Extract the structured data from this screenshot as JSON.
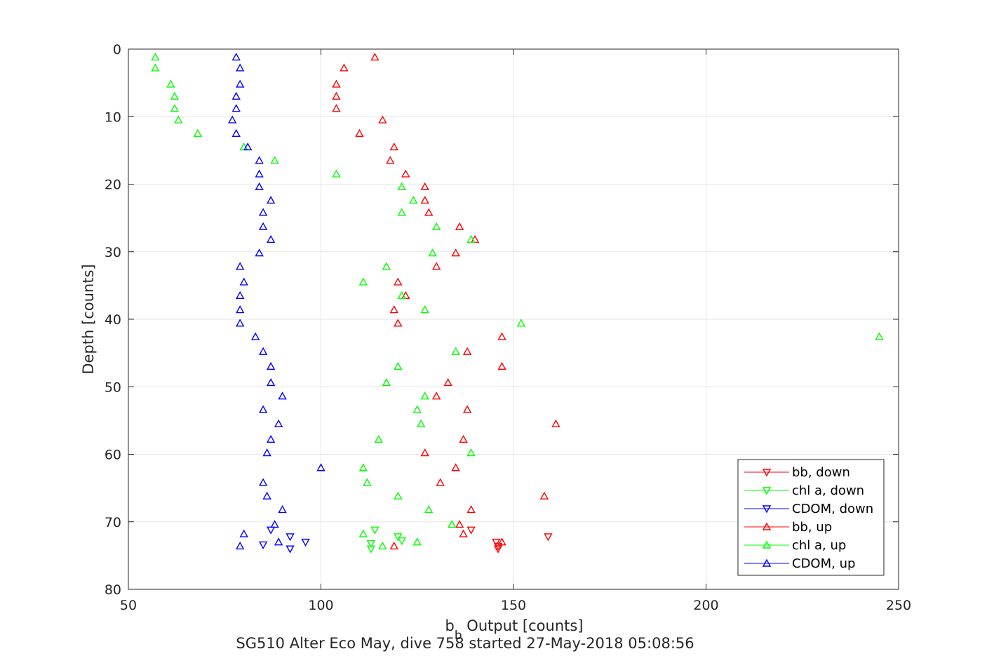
{
  "chart_data": {
    "type": "scatter",
    "title": "SG510 Alter Eco May, dive 758 started 27-May-2018 05:08:56",
    "xlabel_main": "b",
    "xlabel_sub": "b",
    "xlabel_rest": " Output [counts]",
    "ylabel": "Depth [counts]",
    "xlim": [
      50,
      250
    ],
    "ylim": [
      0,
      80
    ],
    "y_reversed": true,
    "xticks": [
      50,
      100,
      150,
      200,
      250
    ],
    "yticks": [
      0,
      10,
      20,
      30,
      40,
      50,
      60,
      70,
      80
    ],
    "grid": true,
    "legend_position": "bottom-right",
    "series": [
      {
        "name": "bb, down",
        "color": "#ff0000",
        "marker": "triangle-down",
        "points": [
          [
            139,
            71.2
          ],
          [
            159,
            72.2
          ],
          [
            145.5,
            73.0
          ],
          [
            146,
            73.6
          ],
          [
            146,
            74.0
          ]
        ]
      },
      {
        "name": "chl a, down",
        "color": "#00ff00",
        "marker": "triangle-down",
        "points": [
          [
            114,
            71.2
          ],
          [
            120,
            72.2
          ],
          [
            121,
            72.8
          ],
          [
            113,
            73.2
          ],
          [
            113,
            74.0
          ]
        ]
      },
      {
        "name": "CDOM, down",
        "color": "#0000ff",
        "marker": "triangle-down",
        "points": [
          [
            87,
            71.2
          ],
          [
            92,
            72.2
          ],
          [
            96,
            73.0
          ],
          [
            85,
            73.4
          ],
          [
            92,
            74.0
          ]
        ]
      },
      {
        "name": "bb, up",
        "color": "#ff0000",
        "marker": "triangle-up",
        "points": [
          [
            114,
            1.2
          ],
          [
            106,
            2.8
          ],
          [
            104,
            5.2
          ],
          [
            104,
            7.0
          ],
          [
            104,
            8.8
          ],
          [
            116,
            10.5
          ],
          [
            110,
            12.5
          ],
          [
            119,
            14.5
          ],
          [
            118,
            16.5
          ],
          [
            122,
            18.5
          ],
          [
            127,
            20.4
          ],
          [
            127,
            22.4
          ],
          [
            128,
            24.2
          ],
          [
            136,
            26.3
          ],
          [
            140,
            28.2
          ],
          [
            135,
            30.2
          ],
          [
            130,
            32.2
          ],
          [
            120,
            34.5
          ],
          [
            122,
            36.5
          ],
          [
            119,
            38.6
          ],
          [
            120,
            40.6
          ],
          [
            147,
            42.6
          ],
          [
            138,
            44.8
          ],
          [
            147,
            47.0
          ],
          [
            133,
            49.4
          ],
          [
            130,
            51.4
          ],
          [
            138,
            53.4
          ],
          [
            161,
            55.5
          ],
          [
            137,
            57.8
          ],
          [
            127,
            59.8
          ],
          [
            135,
            62.0
          ],
          [
            131,
            64.2
          ],
          [
            158,
            66.2
          ],
          [
            139,
            68.2
          ],
          [
            136,
            70.4
          ],
          [
            137,
            71.8
          ],
          [
            147,
            73.0
          ],
          [
            119,
            73.6
          ]
        ]
      },
      {
        "name": "chl a, up",
        "color": "#00ff00",
        "marker": "triangle-up",
        "points": [
          [
            57,
            1.2
          ],
          [
            57,
            2.8
          ],
          [
            61,
            5.2
          ],
          [
            62,
            7.0
          ],
          [
            62,
            8.8
          ],
          [
            63,
            10.5
          ],
          [
            68,
            12.5
          ],
          [
            80,
            14.5
          ],
          [
            88,
            16.5
          ],
          [
            104,
            18.5
          ],
          [
            121,
            20.4
          ],
          [
            124,
            22.4
          ],
          [
            121,
            24.2
          ],
          [
            130,
            26.3
          ],
          [
            139,
            28.2
          ],
          [
            129,
            30.2
          ],
          [
            117,
            32.2
          ],
          [
            111,
            34.5
          ],
          [
            121,
            36.5
          ],
          [
            127,
            38.6
          ],
          [
            152,
            40.6
          ],
          [
            245,
            42.6
          ],
          [
            135,
            44.8
          ],
          [
            120,
            47.0
          ],
          [
            117,
            49.4
          ],
          [
            127,
            51.4
          ],
          [
            125,
            53.4
          ],
          [
            126,
            55.5
          ],
          [
            115,
            57.8
          ],
          [
            139,
            59.8
          ],
          [
            111,
            62.0
          ],
          [
            112,
            64.2
          ],
          [
            120,
            66.2
          ],
          [
            128,
            68.2
          ],
          [
            134,
            70.4
          ],
          [
            111,
            71.8
          ],
          [
            125,
            73.0
          ],
          [
            116,
            73.6
          ]
        ]
      },
      {
        "name": "CDOM, up",
        "color": "#0000ff",
        "marker": "triangle-up",
        "points": [
          [
            78,
            1.2
          ],
          [
            79,
            2.8
          ],
          [
            79,
            5.2
          ],
          [
            78,
            7.0
          ],
          [
            78,
            8.8
          ],
          [
            77,
            10.5
          ],
          [
            78,
            12.5
          ],
          [
            81,
            14.5
          ],
          [
            84,
            16.5
          ],
          [
            84,
            18.5
          ],
          [
            84,
            20.4
          ],
          [
            87,
            22.4
          ],
          [
            85,
            24.2
          ],
          [
            85,
            26.3
          ],
          [
            87,
            28.2
          ],
          [
            84,
            30.2
          ],
          [
            79,
            32.2
          ],
          [
            80,
            34.5
          ],
          [
            79,
            36.5
          ],
          [
            79,
            38.6
          ],
          [
            79,
            40.6
          ],
          [
            83,
            42.6
          ],
          [
            85,
            44.8
          ],
          [
            87,
            47.0
          ],
          [
            87,
            49.4
          ],
          [
            90,
            51.4
          ],
          [
            85,
            53.4
          ],
          [
            89,
            55.5
          ],
          [
            87,
            57.8
          ],
          [
            86,
            59.8
          ],
          [
            100,
            62.0
          ],
          [
            85,
            64.2
          ],
          [
            86,
            66.2
          ],
          [
            90,
            68.2
          ],
          [
            88,
            70.4
          ],
          [
            80,
            71.8
          ],
          [
            89,
            73.0
          ],
          [
            79,
            73.6
          ]
        ]
      }
    ]
  }
}
